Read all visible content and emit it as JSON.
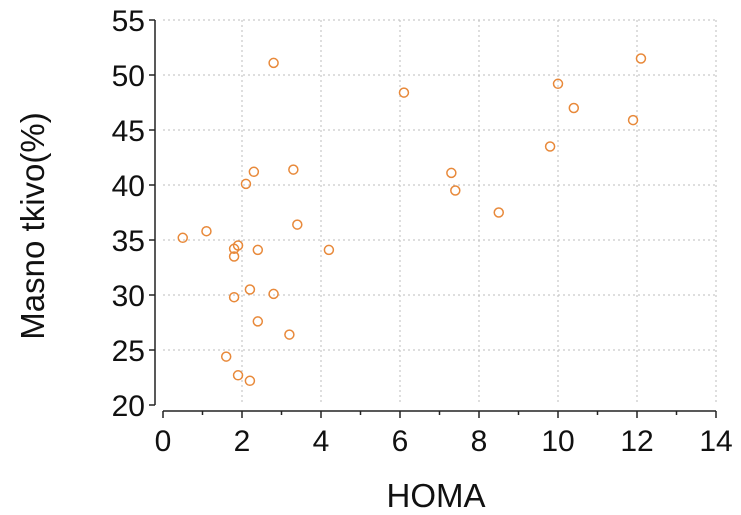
{
  "chart_data": {
    "type": "scatter",
    "title": "",
    "xlabel": "HOMA",
    "ylabel": "Masno tkivo(%)",
    "xlim": [
      0,
      14
    ],
    "ylim": [
      20,
      55
    ],
    "xticks": [
      0,
      2,
      4,
      6,
      8,
      10,
      12,
      14
    ],
    "yticks": [
      20,
      25,
      30,
      35,
      40,
      45,
      50,
      55
    ],
    "grid": true,
    "marker": "open-circle",
    "marker_color": "#e8893a",
    "series": [
      {
        "points": [
          {
            "x": 0.5,
            "y": 35.2
          },
          {
            "x": 1.1,
            "y": 35.8
          },
          {
            "x": 1.6,
            "y": 24.4
          },
          {
            "x": 1.8,
            "y": 34.2
          },
          {
            "x": 1.8,
            "y": 33.5
          },
          {
            "x": 1.8,
            "y": 29.8
          },
          {
            "x": 1.9,
            "y": 34.5
          },
          {
            "x": 1.9,
            "y": 22.7
          },
          {
            "x": 2.1,
            "y": 40.1
          },
          {
            "x": 2.2,
            "y": 30.5
          },
          {
            "x": 2.2,
            "y": 22.2
          },
          {
            "x": 2.3,
            "y": 41.2
          },
          {
            "x": 2.4,
            "y": 34.1
          },
          {
            "x": 2.4,
            "y": 27.6
          },
          {
            "x": 2.8,
            "y": 51.1
          },
          {
            "x": 2.8,
            "y": 30.1
          },
          {
            "x": 3.2,
            "y": 26.4
          },
          {
            "x": 3.3,
            "y": 41.4
          },
          {
            "x": 3.4,
            "y": 36.4
          },
          {
            "x": 4.2,
            "y": 34.1
          },
          {
            "x": 6.1,
            "y": 48.4
          },
          {
            "x": 7.3,
            "y": 41.1
          },
          {
            "x": 7.4,
            "y": 39.5
          },
          {
            "x": 8.5,
            "y": 37.5
          },
          {
            "x": 9.8,
            "y": 43.5
          },
          {
            "x": 10.0,
            "y": 49.2
          },
          {
            "x": 10.4,
            "y": 47.0
          },
          {
            "x": 11.9,
            "y": 45.9
          },
          {
            "x": 12.1,
            "y": 51.5
          }
        ]
      }
    ]
  }
}
